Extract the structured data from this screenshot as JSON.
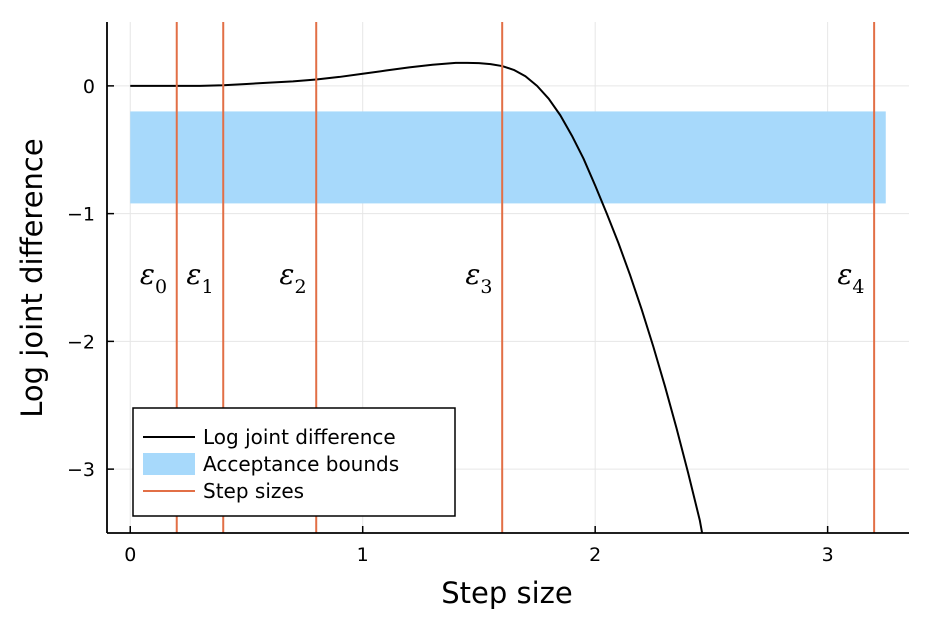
{
  "chart_data": {
    "type": "line",
    "xlabel": "Step size",
    "ylabel": "Log joint difference",
    "xlim": [
      -0.1,
      3.35
    ],
    "ylim": [
      -3.5,
      0.5
    ],
    "xticks": [
      0,
      1,
      2,
      3
    ],
    "yticks": [
      0,
      -1,
      -2,
      -3
    ],
    "xtick_labels": [
      "0",
      "1",
      "2",
      "3"
    ],
    "ytick_labels": [
      "0",
      "−1",
      "−2",
      "−3"
    ],
    "grid": true,
    "legend_position": "bottom-left",
    "series": [
      {
        "name": "Log joint difference",
        "kind": "line",
        "color": "#000000",
        "x": [
          0.0,
          0.1,
          0.2,
          0.3,
          0.4,
          0.5,
          0.6,
          0.7,
          0.8,
          0.9,
          1.0,
          1.1,
          1.2,
          1.3,
          1.4,
          1.45,
          1.5,
          1.55,
          1.6,
          1.65,
          1.7,
          1.75,
          1.8,
          1.85,
          1.9,
          1.95,
          2.0,
          2.05,
          2.1,
          2.15,
          2.2,
          2.25,
          2.3,
          2.35,
          2.4,
          2.45,
          2.46
        ],
        "y": [
          0.0,
          0.0,
          0.0,
          0.0,
          0.005,
          0.015,
          0.025,
          0.035,
          0.05,
          0.07,
          0.095,
          0.12,
          0.145,
          0.165,
          0.18,
          0.18,
          0.178,
          0.17,
          0.155,
          0.125,
          0.075,
          0.0,
          -0.1,
          -0.23,
          -0.39,
          -0.57,
          -0.78,
          -1.0,
          -1.23,
          -1.48,
          -1.75,
          -2.04,
          -2.35,
          -2.68,
          -3.03,
          -3.4,
          -3.5
        ]
      },
      {
        "name": "Acceptance bounds",
        "kind": "band",
        "color": "#a7d9fb",
        "x_range": [
          0.0,
          3.25
        ],
        "y_range": [
          -0.92,
          -0.2
        ]
      },
      {
        "name": "Step sizes",
        "kind": "vlines",
        "color": "#e26f46",
        "x": [
          0.2,
          0.4,
          0.8,
          1.6,
          3.2
        ]
      }
    ],
    "annotations": [
      {
        "symbol": "ε",
        "sub": "0",
        "x": 0.1,
        "y": -1.55
      },
      {
        "symbol": "ε",
        "sub": "1",
        "x": 0.3,
        "y": -1.55
      },
      {
        "symbol": "ε",
        "sub": "2",
        "x": 0.7,
        "y": -1.55
      },
      {
        "symbol": "ε",
        "sub": "3",
        "x": 1.5,
        "y": -1.55
      },
      {
        "symbol": "ε",
        "sub": "4",
        "x": 3.1,
        "y": -1.55
      }
    ]
  }
}
